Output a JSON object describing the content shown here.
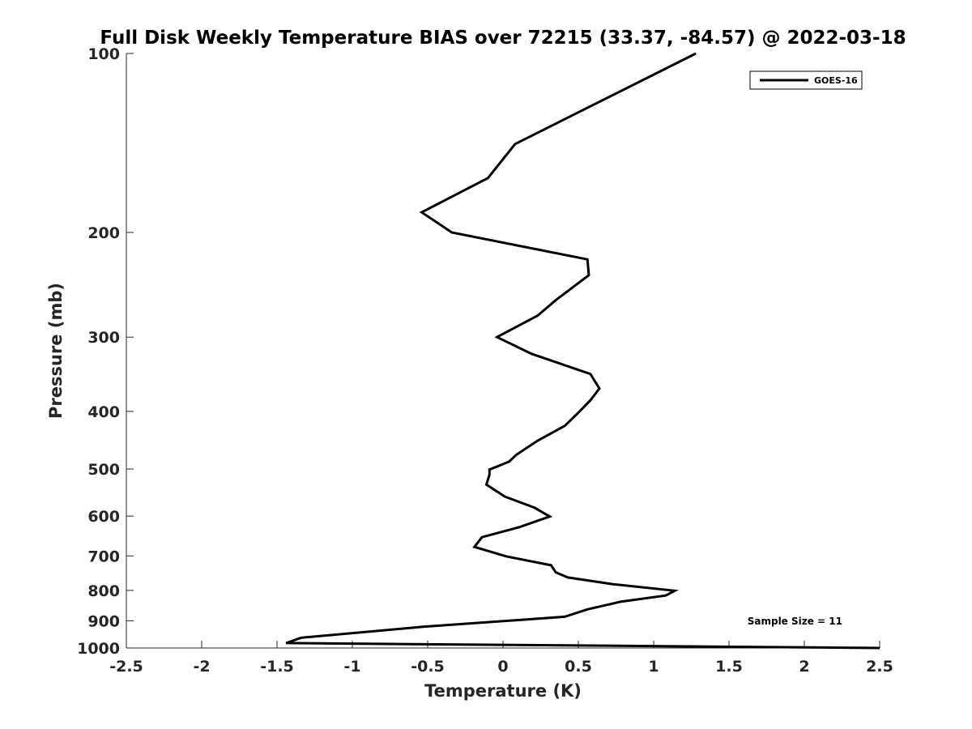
{
  "chart_data": {
    "type": "line",
    "title": "Full Disk Weekly Temperature BIAS over 72215 (33.37, -84.57) @ 2022-03-18",
    "xlabel": "Temperature (K)",
    "ylabel": "Pressure (mb)",
    "xlim": [
      -2.5,
      2.5
    ],
    "ylim": [
      1000,
      100
    ],
    "y_scale": "log",
    "y_reversed": true,
    "x_ticks": [
      -2.5,
      -2,
      -1.5,
      -1,
      -0.5,
      0,
      0.5,
      1,
      1.5,
      2,
      2.5
    ],
    "x_tick_labels": [
      "-2.5",
      "-2",
      "-1.5",
      "-1",
      "-0.5",
      "0",
      "0.5",
      "1",
      "1.5",
      "2",
      "2.5"
    ],
    "y_ticks": [
      100,
      200,
      300,
      400,
      500,
      600,
      700,
      800,
      900,
      1000
    ],
    "y_tick_labels": [
      "100",
      "200",
      "300",
      "400",
      "500",
      "600",
      "700",
      "800",
      "900",
      "1000"
    ],
    "grid": false,
    "legend_position": "top-right",
    "annotation": "Sample Size = 11",
    "series": [
      {
        "name": "GOES-16",
        "color": "#000000",
        "points": [
          {
            "x": 1.28,
            "p": 100
          },
          {
            "x": 0.08,
            "p": 142
          },
          {
            "x": -0.1,
            "p": 162
          },
          {
            "x": -0.54,
            "p": 185
          },
          {
            "x": -0.34,
            "p": 200
          },
          {
            "x": 0.56,
            "p": 222
          },
          {
            "x": 0.57,
            "p": 236
          },
          {
            "x": 0.35,
            "p": 260
          },
          {
            "x": 0.23,
            "p": 276
          },
          {
            "x": -0.04,
            "p": 300
          },
          {
            "x": 0.19,
            "p": 320
          },
          {
            "x": 0.58,
            "p": 346
          },
          {
            "x": 0.64,
            "p": 366
          },
          {
            "x": 0.58,
            "p": 383
          },
          {
            "x": 0.5,
            "p": 402
          },
          {
            "x": 0.41,
            "p": 423
          },
          {
            "x": 0.23,
            "p": 448
          },
          {
            "x": 0.09,
            "p": 473
          },
          {
            "x": 0.04,
            "p": 486
          },
          {
            "x": -0.09,
            "p": 501
          },
          {
            "x": -0.09,
            "p": 511
          },
          {
            "x": -0.11,
            "p": 531
          },
          {
            "x": 0.01,
            "p": 556
          },
          {
            "x": 0.21,
            "p": 581
          },
          {
            "x": 0.31,
            "p": 601
          },
          {
            "x": 0.11,
            "p": 626
          },
          {
            "x": -0.14,
            "p": 651
          },
          {
            "x": -0.19,
            "p": 676
          },
          {
            "x": 0.02,
            "p": 701
          },
          {
            "x": 0.32,
            "p": 726
          },
          {
            "x": 0.35,
            "p": 746
          },
          {
            "x": 0.43,
            "p": 761
          },
          {
            "x": 0.73,
            "p": 781
          },
          {
            "x": 1.14,
            "p": 801
          },
          {
            "x": 1.08,
            "p": 816
          },
          {
            "x": 0.78,
            "p": 836
          },
          {
            "x": 0.56,
            "p": 861
          },
          {
            "x": 0.41,
            "p": 886
          },
          {
            "x": -0.53,
            "p": 921
          },
          {
            "x": -1.34,
            "p": 961
          },
          {
            "x": -1.44,
            "p": 981
          },
          {
            "x": 2.5,
            "p": 1000
          }
        ]
      }
    ]
  }
}
